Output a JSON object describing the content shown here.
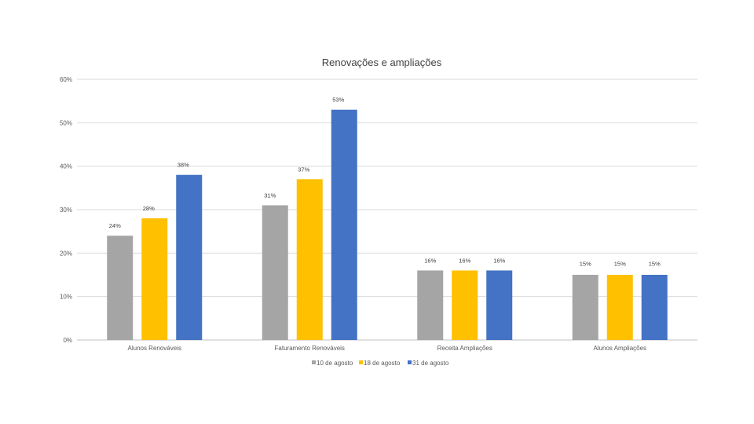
{
  "chart_data": {
    "type": "bar",
    "title": "Renovações e ampliações",
    "categories": [
      "Alunos Renováveis",
      "Faturamento Renováveis",
      "Receita Ampliações",
      "Alunos Ampliações"
    ],
    "series": [
      {
        "name": "10 de agosto",
        "color": "#a5a5a5",
        "values": [
          24,
          31,
          16,
          15
        ],
        "labels": [
          "24%",
          "31%",
          "16%",
          "15%"
        ]
      },
      {
        "name": "18 de agosto",
        "color": "#ffc000",
        "values": [
          28,
          37,
          16,
          15
        ],
        "labels": [
          "28%",
          "37%",
          "16%",
          "15%"
        ]
      },
      {
        "name": "31 de agosto",
        "color": "#4472c4",
        "values": [
          38,
          53,
          16,
          15
        ],
        "labels": [
          "38%",
          "53%",
          "16%",
          "15%"
        ]
      }
    ],
    "y_ticks": [
      "0%",
      "10%",
      "20%",
      "30%",
      "40%",
      "50%",
      "60%"
    ],
    "ylim": [
      0,
      60
    ],
    "grid": true,
    "legend_position": "bottom"
  }
}
